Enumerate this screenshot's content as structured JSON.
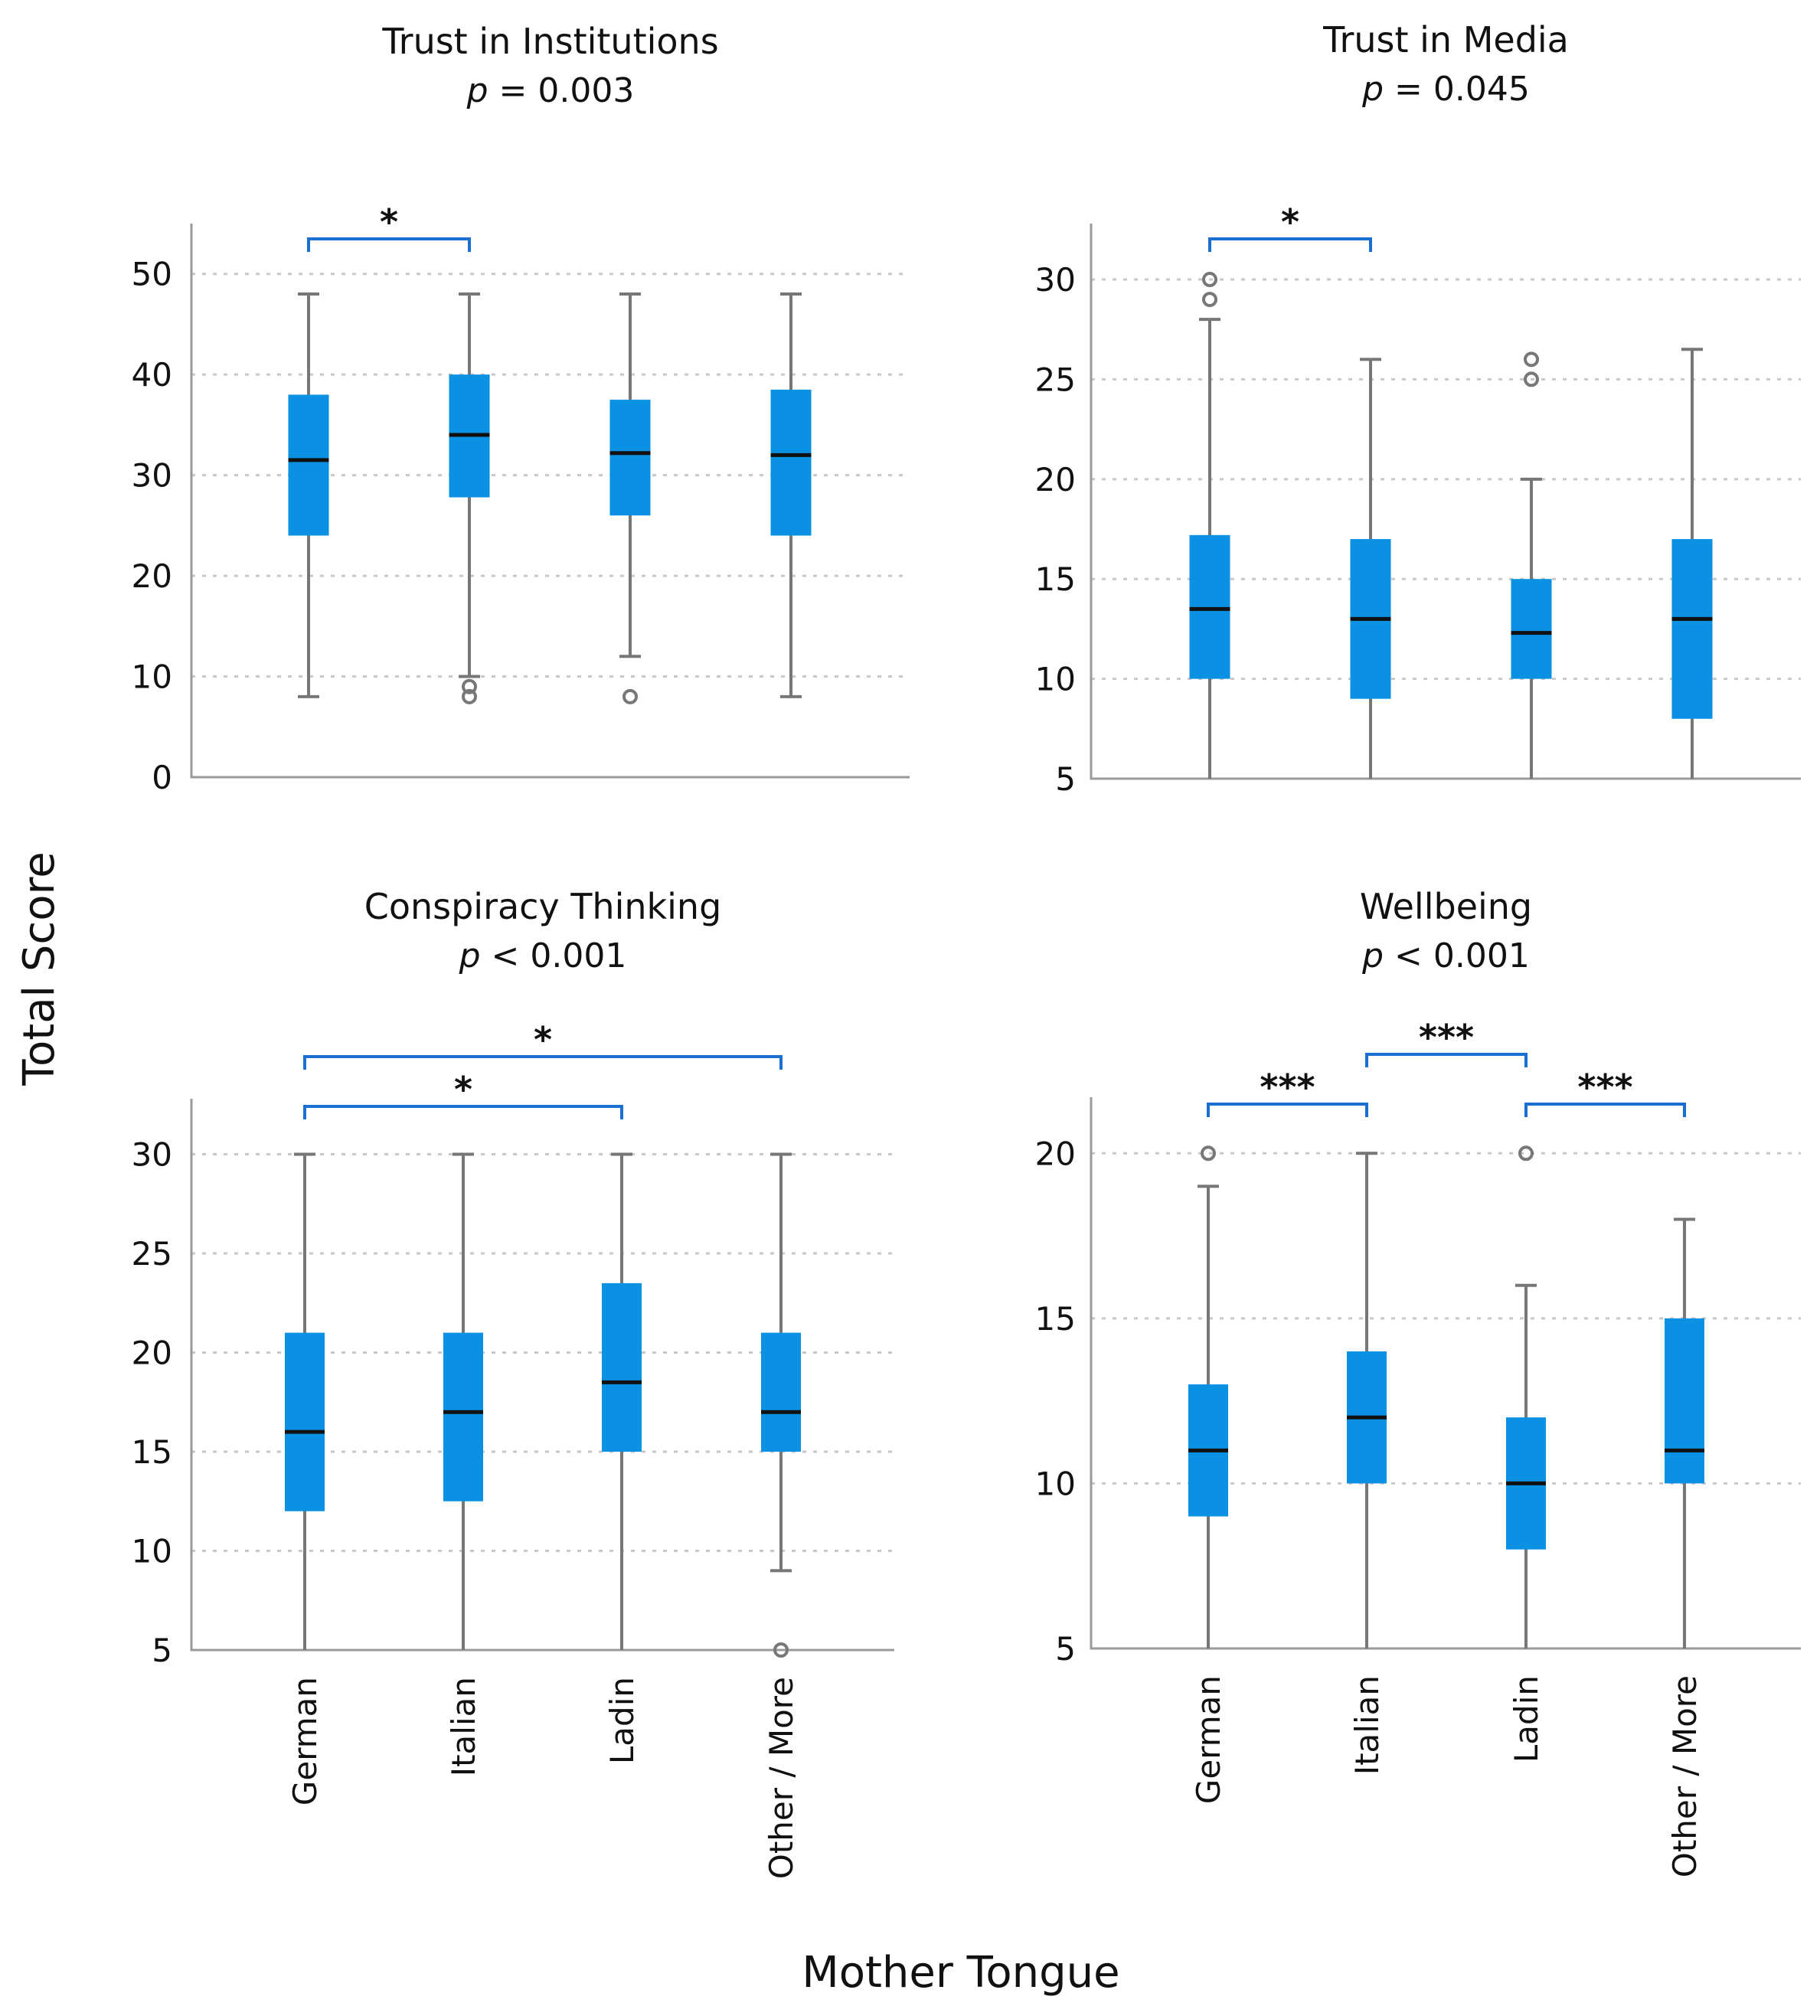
{
  "figure": {
    "y_axis_title": "Total  Score",
    "x_axis_title": "Mother Tongue"
  },
  "chart_data": [
    {
      "type": "boxplot",
      "title": "Trust in Institutions",
      "p_symbol": "p",
      "p_rest": " = 0.003",
      "categories": [
        "German",
        "Italian",
        "Ladin",
        "Other / More"
      ],
      "ylim": [
        0,
        55
      ],
      "yticks": [
        0,
        10,
        20,
        30,
        40,
        50
      ],
      "show_category_labels": false,
      "boxes": [
        {
          "whisker_low": 8,
          "q1": 24,
          "median": 31.5,
          "q3": 38,
          "whisker_high": 48,
          "outliers": []
        },
        {
          "whisker_low": 10,
          "q1": 27.8,
          "median": 34,
          "q3": 40,
          "whisker_high": 48,
          "outliers": [
            8,
            9
          ]
        },
        {
          "whisker_low": 12,
          "q1": 26,
          "median": 32.2,
          "q3": 37.5,
          "whisker_high": 48,
          "outliers": [
            8
          ]
        },
        {
          "whisker_low": 8,
          "q1": 24,
          "median": 32,
          "q3": 38.5,
          "whisker_high": 48,
          "outliers": []
        }
      ],
      "comparisons": [
        {
          "from": 0,
          "to": 1,
          "label": "*",
          "level": 0
        }
      ]
    },
    {
      "type": "boxplot",
      "title": "Trust in Media",
      "p_symbol": "p",
      "p_rest": " = 0.045",
      "categories": [
        "German",
        "Italian",
        "Ladin",
        "Other / More"
      ],
      "ylim": [
        5,
        32.8
      ],
      "yticks": [
        5,
        10,
        15,
        20,
        25,
        30
      ],
      "show_category_labels": false,
      "boxes": [
        {
          "whisker_low": 5,
          "q1": 10,
          "median": 13.5,
          "q3": 17.2,
          "whisker_high": 28,
          "outliers": [
            29,
            30
          ]
        },
        {
          "whisker_low": 5,
          "q1": 9,
          "median": 13,
          "q3": 17,
          "whisker_high": 26,
          "outliers": []
        },
        {
          "whisker_low": 5,
          "q1": 10,
          "median": 12.3,
          "q3": 15,
          "whisker_high": 20,
          "outliers": [
            25,
            26
          ]
        },
        {
          "whisker_low": 5,
          "q1": 8,
          "median": 13,
          "q3": 17,
          "whisker_high": 26.5,
          "outliers": []
        }
      ],
      "comparisons": [
        {
          "from": 0,
          "to": 1,
          "label": "*",
          "level": 0
        }
      ]
    },
    {
      "type": "boxplot",
      "title": "Conspiracy Thinking",
      "p_symbol": "p",
      "p_rest": " < 0.001",
      "categories": [
        "German",
        "Italian",
        "Ladin",
        "Other / More"
      ],
      "ylim": [
        5,
        32.8
      ],
      "yticks": [
        5,
        10,
        15,
        20,
        25,
        30
      ],
      "show_category_labels": true,
      "boxes": [
        {
          "whisker_low": 5,
          "q1": 12,
          "median": 16,
          "q3": 21,
          "whisker_high": 30,
          "outliers": []
        },
        {
          "whisker_low": 5,
          "q1": 12.5,
          "median": 17,
          "q3": 21,
          "whisker_high": 30,
          "outliers": []
        },
        {
          "whisker_low": 5,
          "q1": 15,
          "median": 18.5,
          "q3": 23.5,
          "whisker_high": 30,
          "outliers": []
        },
        {
          "whisker_low": 9,
          "q1": 15,
          "median": 17,
          "q3": 21,
          "whisker_high": 30,
          "outliers": [
            5
          ]
        }
      ],
      "comparisons": [
        {
          "from": 0,
          "to": 2,
          "label": "*",
          "level": 0
        },
        {
          "from": 0,
          "to": 3,
          "label": "*",
          "level": 1
        }
      ]
    },
    {
      "type": "boxplot",
      "title": "Wellbeing",
      "p_symbol": "p",
      "p_rest": " < 0.001",
      "categories": [
        "German",
        "Italian",
        "Ladin",
        "Other / More"
      ],
      "ylim": [
        5,
        21.7
      ],
      "yticks": [
        5,
        10,
        15,
        20
      ],
      "show_category_labels": true,
      "boxes": [
        {
          "whisker_low": 5,
          "q1": 9,
          "median": 11,
          "q3": 13,
          "whisker_high": 19,
          "outliers": [
            20
          ]
        },
        {
          "whisker_low": 5,
          "q1": 10,
          "median": 12,
          "q3": 14,
          "whisker_high": 20,
          "outliers": []
        },
        {
          "whisker_low": 5,
          "q1": 8,
          "median": 10,
          "q3": 12,
          "whisker_high": 16,
          "outliers": [
            20
          ]
        },
        {
          "whisker_low": 5,
          "q1": 10,
          "median": 11,
          "q3": 15,
          "whisker_high": 18,
          "outliers": []
        }
      ],
      "comparisons": [
        {
          "from": 0,
          "to": 1,
          "label": "***",
          "level": 0
        },
        {
          "from": 1,
          "to": 2,
          "label": "***",
          "level": 1
        },
        {
          "from": 2,
          "to": 3,
          "label": "***",
          "level": 0
        }
      ]
    }
  ]
}
